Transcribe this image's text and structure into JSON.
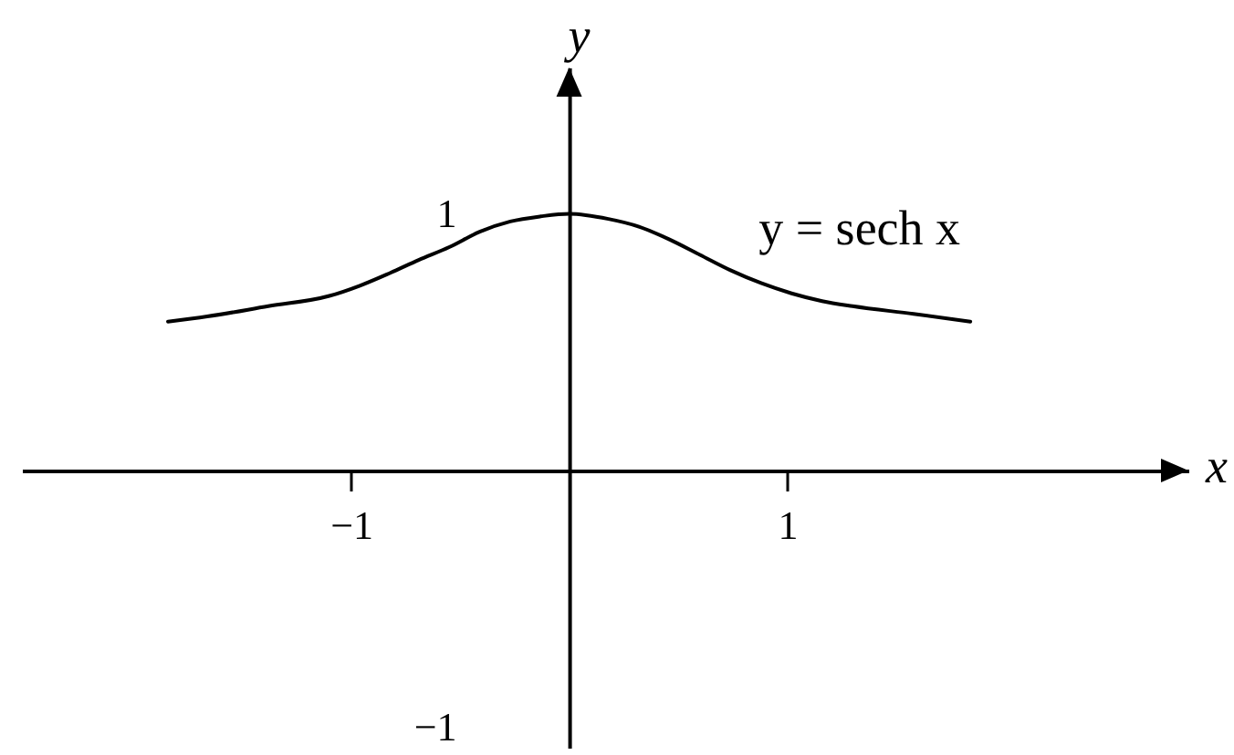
{
  "chart_data": {
    "type": "line",
    "xlabel": "x",
    "ylabel": "y",
    "x": [
      -1.84,
      -1.66,
      -1.38,
      -1.1,
      -0.96,
      -0.82,
      -0.69,
      -0.55,
      -0.41,
      -0.27,
      -0.13,
      0,
      0.18,
      0.32,
      0.46,
      0.6,
      0.74,
      0.88,
      1.02,
      1.16,
      1.3,
      1.58,
      1.84
    ],
    "series": [
      {
        "name": "y = sech x",
        "color": "#000000",
        "values": [
          0.58,
          0.6,
          0.64,
          0.68,
          0.72,
          0.77,
          0.82,
          0.87,
          0.93,
          0.97,
          0.99,
          1,
          0.98,
          0.95,
          0.9,
          0.84,
          0.78,
          0.73,
          0.69,
          0.66,
          0.64,
          0.61,
          0.58
        ]
      }
    ],
    "xlim": [
      -2.51,
      2.84
    ],
    "ylim": [
      -1.08,
      1.57
    ],
    "xticks": [
      {
        "value": -1,
        "label": "−1"
      },
      1
    ],
    "yticks": [
      1,
      {
        "value": -1,
        "label": "−1"
      }
    ],
    "grid": false
  }
}
